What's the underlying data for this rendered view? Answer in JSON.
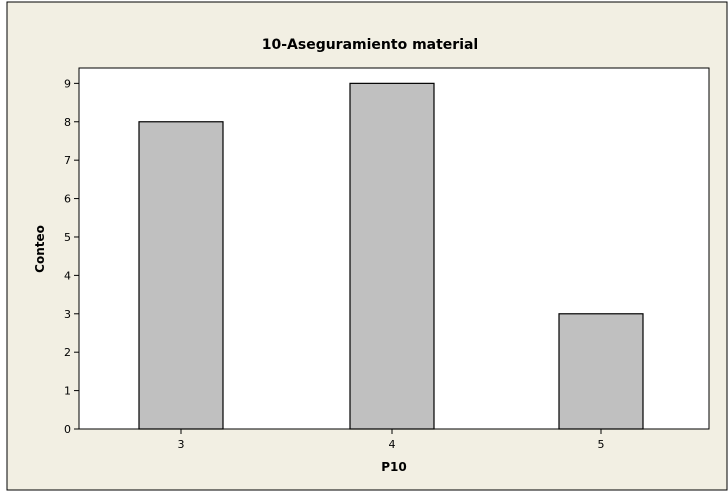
{
  "colors": {
    "page_background": "#ffffff",
    "chart_background": "#f2efe3",
    "plot_background": "#ffffff",
    "bar_fill": "#c0c0c0",
    "bar_stroke": "#000000",
    "text": "#000000"
  },
  "chart_data": {
    "type": "bar",
    "title": "10-Aseguramiento material",
    "xlabel": "P10",
    "ylabel": "Conteo",
    "categories": [
      "3",
      "4",
      "5"
    ],
    "values": [
      8,
      9,
      3
    ],
    "ylim": [
      0,
      9.4
    ],
    "yticks": [
      0,
      1,
      2,
      3,
      4,
      5,
      6,
      7,
      8,
      9
    ],
    "grid": false,
    "legend": "none"
  }
}
